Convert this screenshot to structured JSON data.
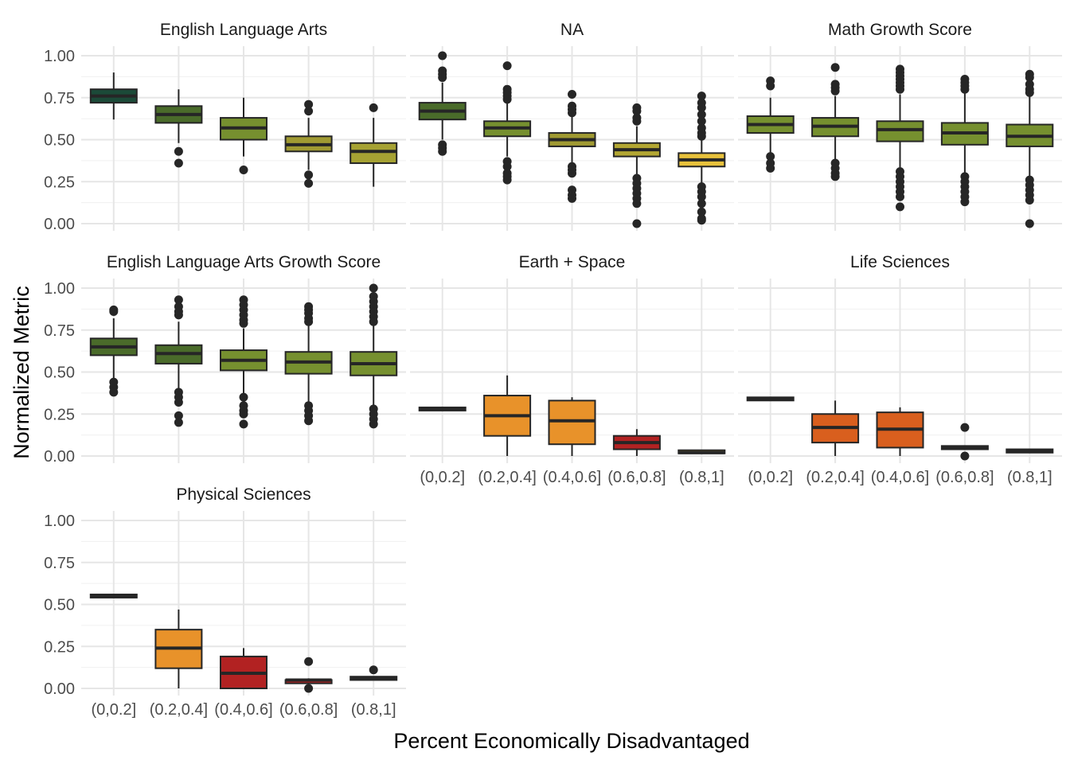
{
  "chart_data": {
    "type": "boxplot",
    "xlabel": "Percent Economically Disadvantaged",
    "ylabel": "Normalized Metric",
    "categories": [
      "(0,0.2]",
      "(0.2,0.4]",
      "(0.4,0.6]",
      "(0.6,0.8]",
      "(0.8,1]"
    ],
    "ylim": [
      0,
      1
    ],
    "yticks": [
      "0.00",
      "0.25",
      "0.50",
      "0.75",
      "1.00"
    ],
    "yticks_values": [
      0,
      0.25,
      0.5,
      0.75,
      1
    ],
    "grid": true,
    "facets": [
      {
        "title": "English Language Arts",
        "boxes": [
          {
            "category": "(0,0.2]",
            "min": 0.62,
            "q1": 0.72,
            "median": 0.76,
            "q3": 0.8,
            "max": 0.9,
            "outliers": [],
            "color": "#1b4a38"
          },
          {
            "category": "(0.2,0.4]",
            "min": 0.48,
            "q1": 0.6,
            "median": 0.65,
            "q3": 0.7,
            "max": 0.8,
            "outliers": [
              0.43,
              0.36
            ],
            "color": "#4a6b2a"
          },
          {
            "category": "(0.4,0.6]",
            "min": 0.4,
            "q1": 0.5,
            "median": 0.57,
            "q3": 0.63,
            "max": 0.75,
            "outliers": [
              0.32
            ],
            "color": "#76902f"
          },
          {
            "category": "(0.6,0.8]",
            "min": 0.32,
            "q1": 0.43,
            "median": 0.47,
            "q3": 0.52,
            "max": 0.63,
            "outliers": [
              0.71,
              0.67,
              0.29,
              0.24
            ],
            "color": "#a09a32"
          },
          {
            "category": "(0.8,1]",
            "min": 0.22,
            "q1": 0.36,
            "median": 0.43,
            "q3": 0.48,
            "max": 0.63,
            "outliers": [
              0.69
            ],
            "color": "#a6a233"
          }
        ]
      },
      {
        "title": "NA",
        "boxes": [
          {
            "category": "(0,0.2]",
            "min": 0.5,
            "q1": 0.62,
            "median": 0.67,
            "q3": 0.72,
            "max": 0.84,
            "outliers": [
              1.0,
              0.91,
              0.89,
              0.87,
              0.47,
              0.45,
              0.43
            ],
            "color": "#4a6b2a"
          },
          {
            "category": "(0.2,0.4]",
            "min": 0.4,
            "q1": 0.52,
            "median": 0.57,
            "q3": 0.61,
            "max": 0.72,
            "outliers": [
              0.94,
              0.8,
              0.78,
              0.76,
              0.74,
              0.37,
              0.34,
              0.3,
              0.28,
              0.26
            ],
            "color": "#76902f"
          },
          {
            "category": "(0.4,0.6]",
            "min": 0.36,
            "q1": 0.46,
            "median": 0.5,
            "q3": 0.54,
            "max": 0.64,
            "outliers": [
              0.77,
              0.7,
              0.68,
              0.66,
              0.34,
              0.32,
              0.3,
              0.2,
              0.17,
              0.15
            ],
            "color": "#a09a32"
          },
          {
            "category": "(0.6,0.8]",
            "min": 0.28,
            "q1": 0.4,
            "median": 0.44,
            "q3": 0.48,
            "max": 0.58,
            "outliers": [
              0.69,
              0.67,
              0.63,
              0.61,
              0.27,
              0.24,
              0.21,
              0.18,
              0.15,
              0.12,
              0.0
            ],
            "color": "#b3a733"
          },
          {
            "category": "(0.8,1]",
            "min": 0.24,
            "q1": 0.34,
            "median": 0.38,
            "q3": 0.42,
            "max": 0.5,
            "outliers": [
              0.76,
              0.72,
              0.69,
              0.65,
              0.61,
              0.57,
              0.54,
              0.52,
              0.22,
              0.19,
              0.16,
              0.12,
              0.07,
              0.03,
              0.02
            ],
            "color": "#e8c23c"
          }
        ]
      },
      {
        "title": "Math Growth Score",
        "boxes": [
          {
            "category": "(0,0.2]",
            "min": 0.42,
            "q1": 0.54,
            "median": 0.59,
            "q3": 0.64,
            "max": 0.75,
            "outliers": [
              0.85,
              0.82,
              0.4,
              0.36,
              0.33
            ],
            "color": "#76902f"
          },
          {
            "category": "(0.2,0.4]",
            "min": 0.38,
            "q1": 0.52,
            "median": 0.58,
            "q3": 0.63,
            "max": 0.76,
            "outliers": [
              0.93,
              0.83,
              0.81,
              0.79,
              0.36,
              0.33,
              0.3,
              0.28
            ],
            "color": "#76902f"
          },
          {
            "category": "(0.4,0.6]",
            "min": 0.33,
            "q1": 0.49,
            "median": 0.56,
            "q3": 0.61,
            "max": 0.77,
            "outliers": [
              0.92,
              0.9,
              0.88,
              0.86,
              0.84,
              0.82,
              0.8,
              0.31,
              0.28,
              0.25,
              0.22,
              0.19,
              0.16,
              0.1
            ],
            "color": "#76902f"
          },
          {
            "category": "(0.6,0.8]",
            "min": 0.3,
            "q1": 0.47,
            "median": 0.54,
            "q3": 0.6,
            "max": 0.78,
            "outliers": [
              0.86,
              0.84,
              0.82,
              0.8,
              0.28,
              0.25,
              0.22,
              0.19,
              0.16,
              0.13
            ],
            "color": "#76902f"
          },
          {
            "category": "(0.8,1]",
            "min": 0.28,
            "q1": 0.46,
            "median": 0.52,
            "q3": 0.59,
            "max": 0.76,
            "outliers": [
              0.89,
              0.87,
              0.83,
              0.8,
              0.78,
              0.26,
              0.23,
              0.2,
              0.17,
              0.14,
              0.0
            ],
            "color": "#76902f"
          }
        ]
      },
      {
        "title": "English Language Arts Growth Score",
        "boxes": [
          {
            "category": "(0,0.2]",
            "min": 0.46,
            "q1": 0.6,
            "median": 0.65,
            "q3": 0.7,
            "max": 0.82,
            "outliers": [
              0.87,
              0.86,
              0.44,
              0.41,
              0.38
            ],
            "color": "#4a6b2a"
          },
          {
            "category": "(0.2,0.4]",
            "min": 0.4,
            "q1": 0.55,
            "median": 0.61,
            "q3": 0.66,
            "max": 0.8,
            "outliers": [
              0.93,
              0.89,
              0.86,
              0.84,
              0.38,
              0.35,
              0.32,
              0.24,
              0.2
            ],
            "color": "#4a6b2a"
          },
          {
            "category": "(0.4,0.6]",
            "min": 0.36,
            "q1": 0.51,
            "median": 0.57,
            "q3": 0.63,
            "max": 0.76,
            "outliers": [
              0.93,
              0.9,
              0.87,
              0.84,
              0.81,
              0.79,
              0.35,
              0.3,
              0.27,
              0.25,
              0.19
            ],
            "color": "#76902f"
          },
          {
            "category": "(0.6,0.8]",
            "min": 0.32,
            "q1": 0.49,
            "median": 0.56,
            "q3": 0.62,
            "max": 0.78,
            "outliers": [
              0.89,
              0.87,
              0.85,
              0.82,
              0.8,
              0.3,
              0.27,
              0.24,
              0.21
            ],
            "color": "#76902f"
          },
          {
            "category": "(0.8,1]",
            "min": 0.3,
            "q1": 0.48,
            "median": 0.55,
            "q3": 0.62,
            "max": 0.78,
            "outliers": [
              1.0,
              0.95,
              0.92,
              0.89,
              0.86,
              0.83,
              0.8,
              0.28,
              0.25,
              0.22,
              0.19
            ],
            "color": "#76902f"
          }
        ]
      },
      {
        "title": "Earth + Space",
        "boxes": [
          {
            "category": "(0,0.2]",
            "min": 0.28,
            "q1": 0.28,
            "median": 0.28,
            "q3": 0.28,
            "max": 0.28,
            "outliers": [],
            "color": "#e8922a"
          },
          {
            "category": "(0.2,0.4]",
            "min": 0.0,
            "q1": 0.12,
            "median": 0.24,
            "q3": 0.36,
            "max": 0.48,
            "outliers": [],
            "color": "#e8922a"
          },
          {
            "category": "(0.4,0.6]",
            "min": 0.0,
            "q1": 0.07,
            "median": 0.21,
            "q3": 0.33,
            "max": 0.35,
            "outliers": [],
            "color": "#e8922a"
          },
          {
            "category": "(0.6,0.8]",
            "min": 0.0,
            "q1": 0.04,
            "median": 0.08,
            "q3": 0.12,
            "max": 0.16,
            "outliers": [],
            "color": "#b22222"
          },
          {
            "category": "(0.8,1]",
            "min": 0.02,
            "q1": 0.02,
            "median": 0.02,
            "q3": 0.03,
            "max": 0.03,
            "outliers": [],
            "color": "#e8c23c"
          }
        ]
      },
      {
        "title": "Life Sciences",
        "boxes": [
          {
            "category": "(0,0.2]",
            "min": 0.34,
            "q1": 0.34,
            "median": 0.34,
            "q3": 0.34,
            "max": 0.34,
            "outliers": [],
            "color": "#d95f1e"
          },
          {
            "category": "(0.2,0.4]",
            "min": 0.0,
            "q1": 0.08,
            "median": 0.17,
            "q3": 0.25,
            "max": 0.33,
            "outliers": [],
            "color": "#d95f1e"
          },
          {
            "category": "(0.4,0.6]",
            "min": 0.0,
            "q1": 0.05,
            "median": 0.16,
            "q3": 0.26,
            "max": 0.29,
            "outliers": [],
            "color": "#d95f1e"
          },
          {
            "category": "(0.6,0.8]",
            "min": 0.04,
            "q1": 0.04,
            "median": 0.05,
            "q3": 0.06,
            "max": 0.06,
            "outliers": [
              0.17,
              0.0
            ],
            "color": "#d95f1e"
          },
          {
            "category": "(0.8,1]",
            "min": 0.02,
            "q1": 0.02,
            "median": 0.03,
            "q3": 0.04,
            "max": 0.04,
            "outliers": [],
            "color": "#d95f1e"
          }
        ]
      },
      {
        "title": "Physical Sciences",
        "boxes": [
          {
            "category": "(0,0.2]",
            "min": 0.55,
            "q1": 0.55,
            "median": 0.55,
            "q3": 0.55,
            "max": 0.55,
            "outliers": [],
            "color": "#e8922a"
          },
          {
            "category": "(0.2,0.4]",
            "min": 0.0,
            "q1": 0.12,
            "median": 0.24,
            "q3": 0.35,
            "max": 0.47,
            "outliers": [],
            "color": "#e8922a"
          },
          {
            "category": "(0.4,0.6]",
            "min": 0.0,
            "q1": 0.0,
            "median": 0.09,
            "q3": 0.19,
            "max": 0.24,
            "outliers": [],
            "color": "#b22222"
          },
          {
            "category": "(0.6,0.8]",
            "min": 0.03,
            "q1": 0.03,
            "median": 0.05,
            "q3": 0.05,
            "max": 0.06,
            "outliers": [
              0.16,
              0.0
            ],
            "color": "#b22222"
          },
          {
            "category": "(0.8,1]",
            "min": 0.05,
            "q1": 0.05,
            "median": 0.06,
            "q3": 0.07,
            "max": 0.07,
            "outliers": [
              0.11
            ],
            "color": "#b22222"
          }
        ]
      }
    ]
  }
}
